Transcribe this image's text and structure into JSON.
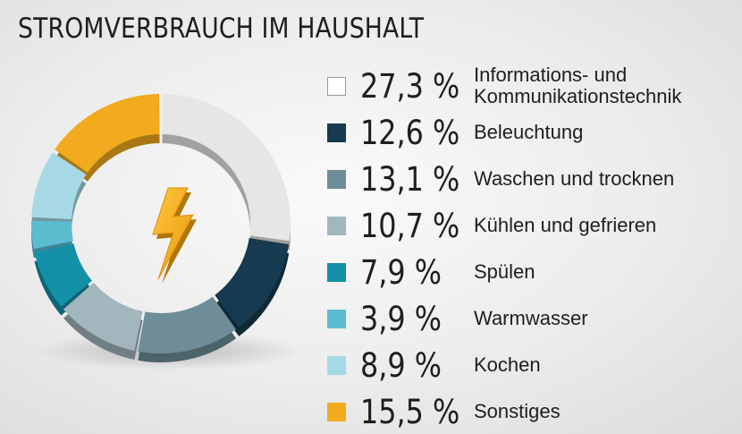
{
  "title": "STROMVERBRAUCH IM HAUSHALT",
  "chart_data": {
    "type": "pie",
    "style": "donut",
    "categories": [
      "Informations- und Kommunikationstechnik",
      "Beleuchtung",
      "Waschen und trocknen",
      "Kühlen und gefrieren",
      "Spülen",
      "Warmwasser",
      "Kochen",
      "Sonstiges"
    ],
    "values": [
      27.3,
      12.6,
      13.1,
      10.7,
      7.9,
      3.9,
      8.9,
      15.5
    ],
    "value_labels": [
      "27,3 %",
      "12,6 %",
      "13,1 %",
      "10,7 %",
      "7,9 %",
      "3,9 %",
      "8,9 %",
      "15,5 %"
    ],
    "colors": [
      "#e6e6e6",
      "#163a4f",
      "#6e8d98",
      "#a2b6bd",
      "#1490a8",
      "#5cbcd0",
      "#a6d9e5",
      "#f2ab1e"
    ],
    "legend_position": "right",
    "center_icon": "lightning-bolt-icon"
  },
  "legend": [
    {
      "pct": "27,3 %",
      "label": "Informations- und Kommunikationstechnik",
      "color": "#ffffff"
    },
    {
      "pct": "12,6 %",
      "label": "Beleuchtung",
      "color": "#163a4f"
    },
    {
      "pct": "13,1 %",
      "label": "Waschen und trocknen",
      "color": "#6e8d98"
    },
    {
      "pct": "10,7 %",
      "label": "Kühlen und gefrieren",
      "color": "#a2b6bd"
    },
    {
      "pct": "7,9 %",
      "label": "Spülen",
      "color": "#1490a8"
    },
    {
      "pct": "3,9 %",
      "label": "Warmwasser",
      "color": "#5cbcd0"
    },
    {
      "pct": "8,9 %",
      "label": "Kochen",
      "color": "#a6d9e5"
    },
    {
      "pct": "15,5 %",
      "label": "Sonstiges",
      "color": "#f2ab1e"
    }
  ]
}
